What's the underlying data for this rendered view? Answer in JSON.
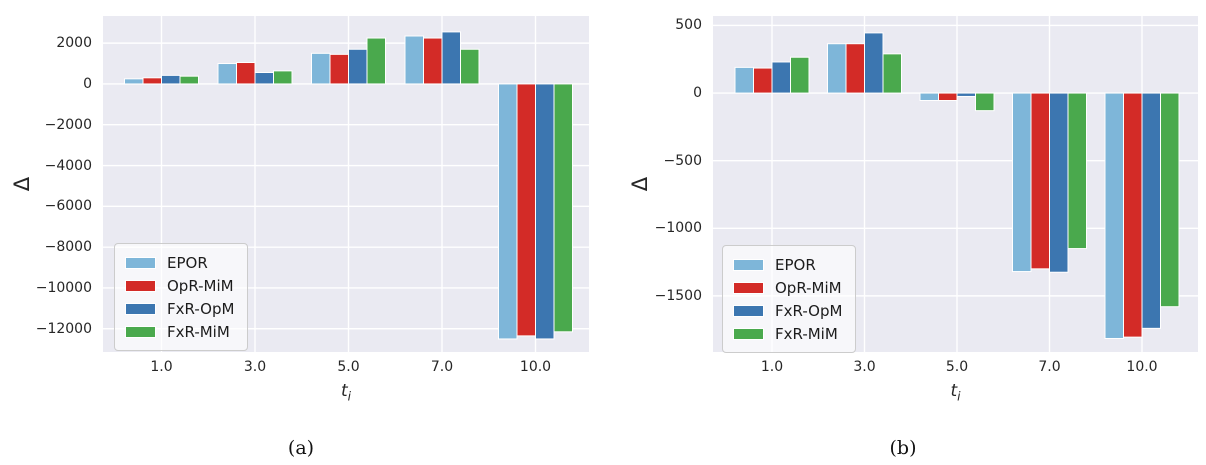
{
  "figure": {
    "background": "#ffffff",
    "plot_background": "#eaeaf2",
    "grid_color": "#ffffff",
    "text_color": "#262626"
  },
  "chart_data": [
    {
      "id": "a",
      "type": "bar",
      "caption": "(a)",
      "xlabel_main": "t",
      "xlabel_sub": "i",
      "ylabel": "Δ",
      "categories": [
        "1.0",
        "3.0",
        "5.0",
        "7.0",
        "10.0"
      ],
      "series": [
        {
          "name": "EPOR",
          "color": "#7eb6d9",
          "values": [
            250,
            1000,
            1500,
            2350,
            -12500
          ]
        },
        {
          "name": "OpR-MiM",
          "color": "#d32b27",
          "values": [
            300,
            1050,
            1450,
            2250,
            -12350
          ]
        },
        {
          "name": "FxR-OpM",
          "color": "#3c76b0",
          "values": [
            420,
            560,
            1700,
            2550,
            -12500
          ]
        },
        {
          "name": "FxR-MiM",
          "color": "#4aa94d",
          "values": [
            380,
            640,
            2250,
            1700,
            -12150
          ]
        }
      ],
      "yticks": [
        2000,
        0,
        -2000,
        -4000,
        -6000,
        -8000,
        -10000,
        -12000
      ],
      "ylim": [
        -13140,
        3330
      ],
      "grid": true,
      "legend_position": "lower left"
    },
    {
      "id": "b",
      "type": "bar",
      "caption": "(b)",
      "xlabel_main": "t",
      "xlabel_sub": "i",
      "ylabel": "Δ",
      "categories": [
        "1.0",
        "3.0",
        "5.0",
        "7.0",
        "10.0"
      ],
      "series": [
        {
          "name": "EPOR",
          "color": "#7eb6d9",
          "values": [
            190,
            365,
            -55,
            -1320,
            -1815
          ]
        },
        {
          "name": "OpR-MiM",
          "color": "#d32b27",
          "values": [
            185,
            365,
            -55,
            -1300,
            -1805
          ]
        },
        {
          "name": "FxR-OpM",
          "color": "#3c76b0",
          "values": [
            230,
            445,
            -25,
            -1325,
            -1740
          ]
        },
        {
          "name": "FxR-MiM",
          "color": "#4aa94d",
          "values": [
            265,
            290,
            -130,
            -1150,
            -1580
          ]
        }
      ],
      "yticks": [
        500,
        0,
        -500,
        -1000,
        -1500
      ],
      "ylim": [
        -1915,
        570
      ],
      "grid": true,
      "legend_position": "lower left"
    }
  ]
}
